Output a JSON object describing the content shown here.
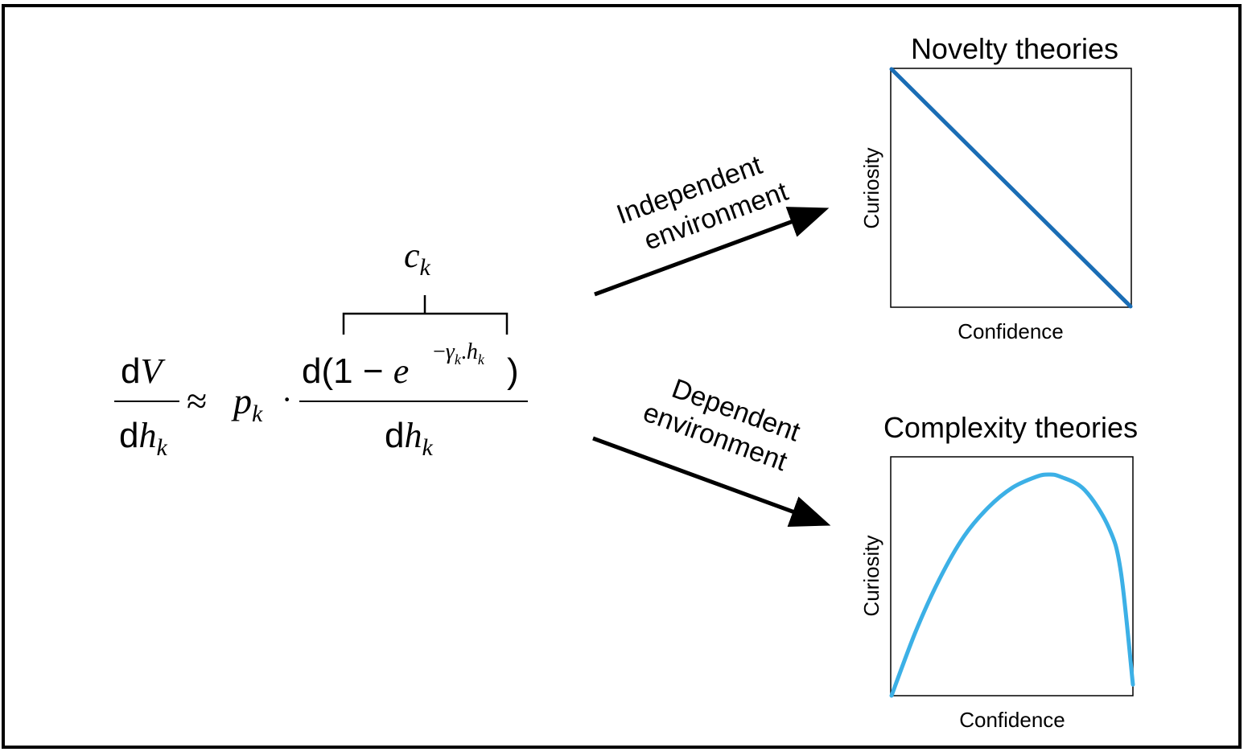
{
  "equation": {
    "lhs_num_d": "d",
    "lhs_num_var": "V",
    "lhs_den_d": "d",
    "lhs_den_var": "h",
    "lhs_den_sub": "k",
    "approx": "≈",
    "p": "p",
    "p_sub": "k",
    "dot": "·",
    "rhs_num_open": "d(1 − ",
    "e": "e",
    "exp_minus": "−",
    "exp_gamma": "γ",
    "exp_gamma_sub": "k",
    "exp_dot": ".",
    "exp_h": "h",
    "exp_h_sub": "k",
    "rhs_num_close": ")",
    "rhs_den_d": "d",
    "rhs_den_var": "h",
    "rhs_den_sub": "k",
    "brace_label": "c",
    "brace_label_sub": "k"
  },
  "arrows": {
    "independent_line1": "Independent",
    "independent_line2": "environment",
    "dependent_line1": "Dependent",
    "dependent_line2": "environment"
  },
  "charts": {
    "novelty": {
      "title": "Novelty theories",
      "xlabel": "Confidence",
      "ylabel": "Curiosity",
      "color": "#1a6db5"
    },
    "complexity": {
      "title": "Complexity theories",
      "xlabel": "Confidence",
      "ylabel": "Curiosity",
      "color": "#3cb0e6"
    }
  },
  "chart_data": [
    {
      "type": "line",
      "title": "Novelty theories",
      "xlabel": "Confidence",
      "ylabel": "Curiosity",
      "xlim": [
        0,
        1
      ],
      "ylim": [
        0,
        1
      ],
      "x": [
        0,
        1
      ],
      "y": [
        1,
        0
      ]
    },
    {
      "type": "line",
      "title": "Complexity theories",
      "xlabel": "Confidence",
      "ylabel": "Curiosity",
      "xlim": [
        0,
        1
      ],
      "ylim": [
        0,
        1
      ],
      "x": [
        0,
        0.1,
        0.2,
        0.3,
        0.4,
        0.5,
        0.6,
        0.65,
        0.7,
        0.8,
        0.9,
        0.95,
        1.0
      ],
      "y": [
        0,
        0.29,
        0.53,
        0.72,
        0.85,
        0.94,
        0.99,
        1.0,
        0.99,
        0.93,
        0.76,
        0.56,
        0.05
      ]
    }
  ]
}
